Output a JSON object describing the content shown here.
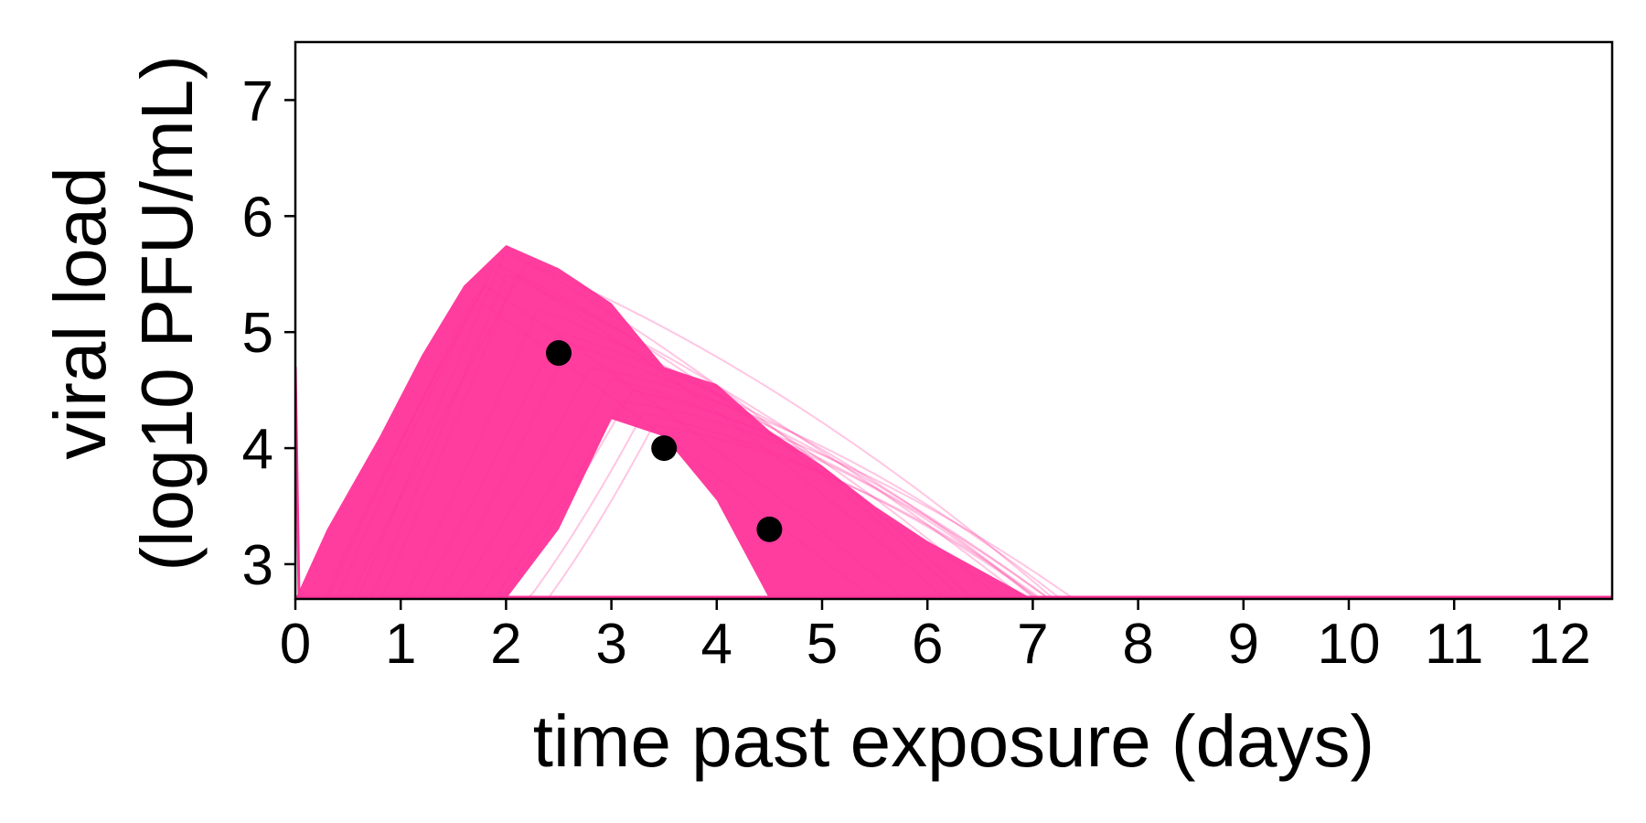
{
  "chart_data": {
    "type": "line",
    "xlabel": "time past exposure (days)",
    "ylabel_line1": "viral load",
    "ylabel_line2": "(log10 PFU/mL)",
    "xlim": [
      0,
      12.5
    ],
    "ylim": [
      2.7,
      7.5
    ],
    "x_ticks": [
      "0",
      "1",
      "2",
      "3",
      "4",
      "5",
      "6",
      "7",
      "8",
      "9",
      "10",
      "11",
      "12"
    ],
    "y_ticks": [
      "3",
      "4",
      "5",
      "6",
      "7"
    ],
    "grid": false,
    "legend": "none",
    "colors": {
      "trajectories": "#ff3399",
      "observed": "#000000",
      "frame": "#000000"
    },
    "trajectory_envelope": {
      "x": [
        0,
        0.3,
        0.8,
        1.2,
        1.6,
        2.0,
        2.5,
        3.0,
        3.5,
        4.0,
        4.5,
        5.0,
        5.5,
        6.0,
        6.5,
        7.0,
        12.5
      ],
      "upper": [
        2.7,
        3.3,
        4.1,
        4.8,
        5.4,
        5.75,
        5.55,
        5.25,
        4.7,
        4.55,
        4.15,
        3.85,
        3.5,
        3.2,
        2.95,
        2.7,
        2.7
      ],
      "lower": [
        2.7,
        2.7,
        2.7,
        2.7,
        2.7,
        2.7,
        3.3,
        4.25,
        4.1,
        3.55,
        2.7,
        2.7,
        2.7,
        2.7,
        2.7,
        2.7,
        2.7
      ]
    },
    "series": [
      {
        "type": "scatter",
        "x": [
          2.5,
          3.5,
          4.5
        ],
        "y": [
          4.82,
          4.0,
          3.3
        ]
      }
    ]
  }
}
